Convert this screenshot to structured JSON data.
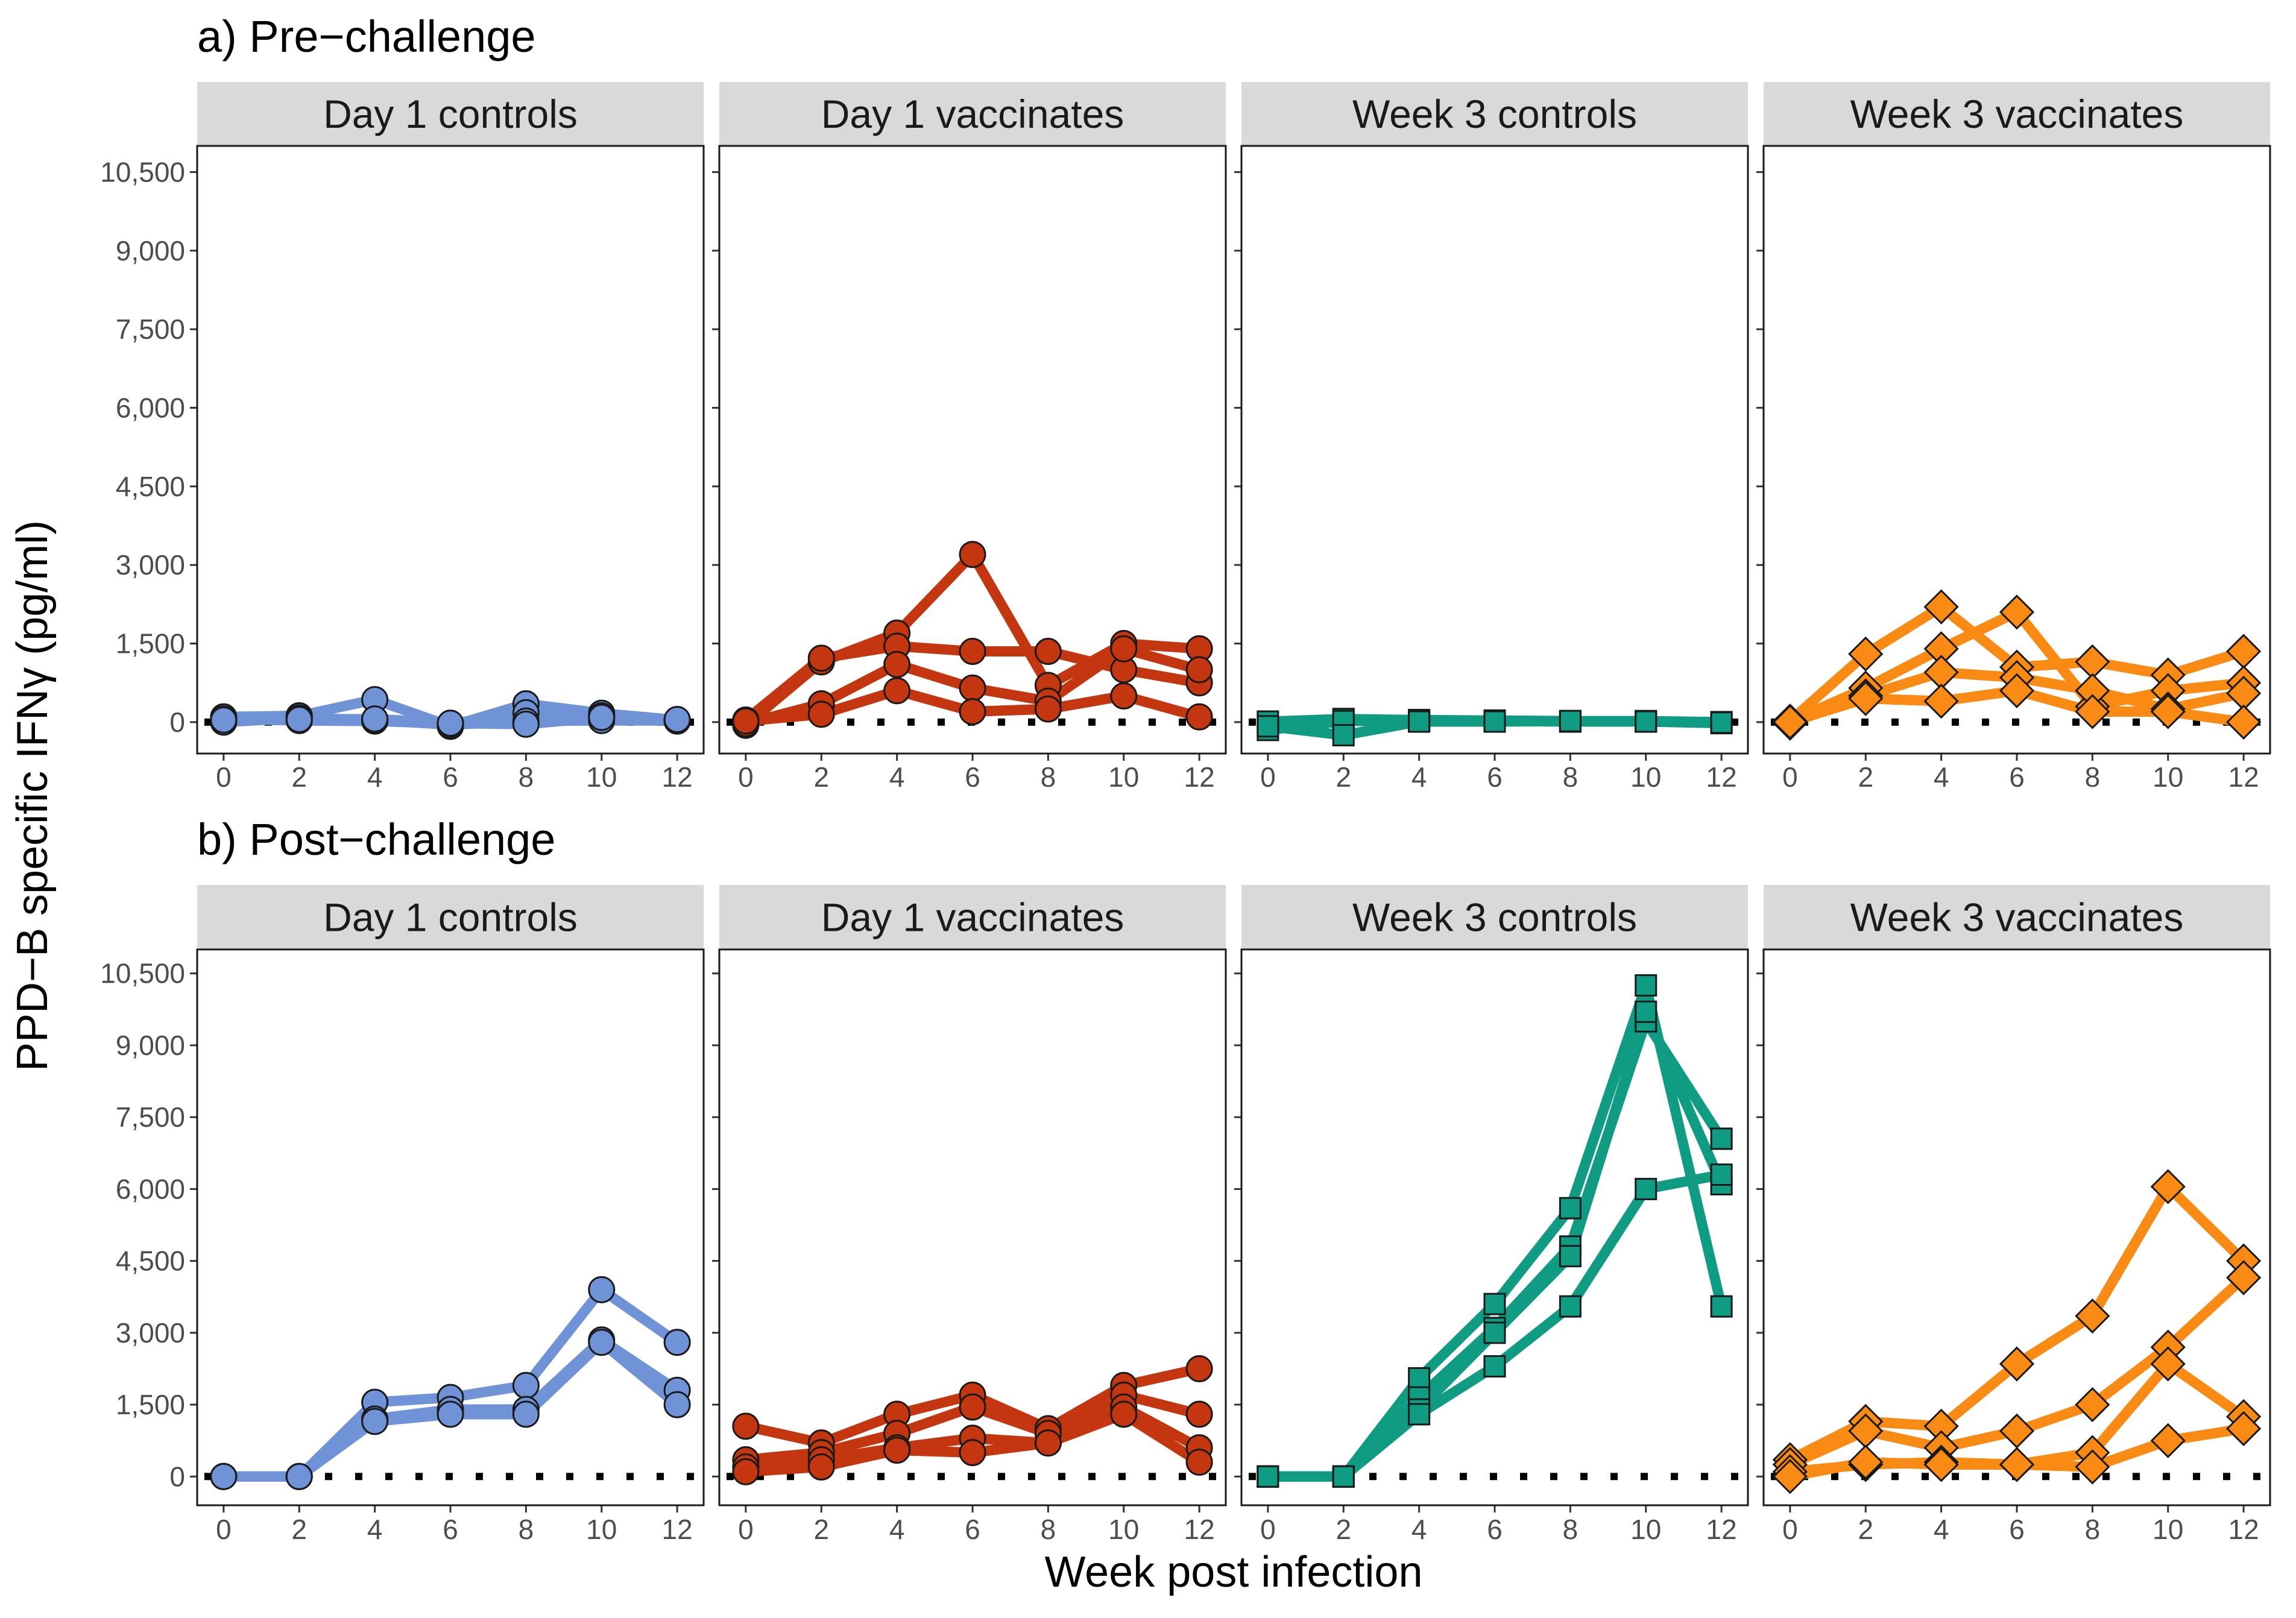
{
  "chart_data": {
    "type": "line",
    "xlabel": "Week post infection",
    "ylabel": "PPD−B specific IFNγ (pg/ml)",
    "x_ticks": [
      "0",
      "2",
      "4",
      "6",
      "8",
      "10",
      "12"
    ],
    "y_ticks": [
      "0",
      "1,500",
      "3,000",
      "4,500",
      "6,000",
      "7,500",
      "9,000",
      "10,500"
    ],
    "xlim": [
      -0.7,
      12.7
    ],
    "ylim": [
      -600,
      11000
    ],
    "reference_line": {
      "y": 0,
      "style": "dotted"
    },
    "groups": [
      {
        "name": "Day 1 controls",
        "color": "#7092D6",
        "marker": "circle"
      },
      {
        "name": "Day 1 vaccinates",
        "color": "#C3360F",
        "marker": "circle"
      },
      {
        "name": "Week 3 controls",
        "color": "#0F9C83",
        "marker": "square"
      },
      {
        "name": "Week 3 vaccinates",
        "color": "#F98A13",
        "marker": "diamond"
      }
    ],
    "rows": [
      {
        "title": "a) Pre−challenge",
        "panels": [
          {
            "facet": "Day 1 controls",
            "x": [
              0,
              2,
              4,
              6,
              8,
              10,
              12
            ],
            "series": [
              {
                "values": [
                  100,
                  120,
                  430,
                  -80,
                  350,
                  170,
                  40
                ]
              },
              {
                "values": [
                  60,
                  30,
                  20,
                  -30,
                  180,
                  120,
                  20
                ]
              },
              {
                "values": [
                  0,
                  80,
                  40,
                  -50,
                  20,
                  30,
                  30
                ]
              },
              {
                "values": [
                  40,
                  50,
                  60,
                  -20,
                  -40,
                  90,
                  50
                ]
              }
            ]
          },
          {
            "facet": "Day 1 vaccinates",
            "x": [
              0,
              2,
              4,
              6,
              8,
              10,
              12
            ],
            "series": [
              {
                "values": [
                  -60,
                  1150,
                  1700,
                  3200,
                  700,
                  1500,
                  1400
                ]
              },
              {
                "values": [
                  40,
                  1220,
                  1450,
                  1350,
                  1350,
                  1000,
                  750
                ]
              },
              {
                "values": [
                  -30,
                  350,
                  1100,
                  650,
                  400,
                  1400,
                  1000
                ]
              },
              {
                "values": [
                  20,
                  150,
                  600,
                  200,
                  250,
                  500,
                  100
                ]
              }
            ]
          },
          {
            "facet": "Week 3 controls",
            "x": [
              0,
              2,
              4,
              6,
              8,
              10,
              12
            ],
            "series": [
              {
                "values": [
                  10,
                  60,
                  40,
                  30,
                  20,
                  20,
                  0
                ]
              },
              {
                "values": [
                  -150,
                  20,
                  30,
                  20,
                  10,
                  10,
                  -20
                ]
              },
              {
                "values": [
                  -80,
                  -250,
                  10,
                  10,
                  20,
                  10,
                  -10
                ]
              }
            ]
          },
          {
            "facet": "Week 3 vaccinates",
            "x": [
              0,
              2,
              4,
              6,
              8,
              10,
              12
            ],
            "series": [
              {
                "values": [
                  20,
                  1300,
                  2200,
                  1050,
                  1150,
                  900,
                  1350
                ]
              },
              {
                "values": [
                  10,
                  650,
                  1400,
                  2100,
                  300,
                  600,
                  750
                ]
              },
              {
                "values": [
                  -20,
                  500,
                  950,
                  850,
                  600,
                  250,
                  550
                ]
              },
              {
                "values": [
                  0,
                  450,
                  400,
                  600,
                  200,
                  200,
                  0
                ]
              }
            ]
          }
        ]
      },
      {
        "title": "b) Post−challenge",
        "panels": [
          {
            "facet": "Day 1 controls",
            "x": [
              0,
              2,
              4,
              6,
              8,
              10,
              12
            ],
            "series": [
              {
                "values": [
                  0,
                  0,
                  1550,
                  1650,
                  1900,
                  3900,
                  2800
                ]
              },
              {
                "values": [
                  0,
                  0,
                  1200,
                  1400,
                  1400,
                  2850,
                  1800
                ]
              },
              {
                "values": [
                  0,
                  0,
                  1150,
                  1300,
                  1300,
                  2800,
                  1500
                ]
              }
            ]
          },
          {
            "facet": "Day 1 vaccinates",
            "x": [
              0,
              2,
              4,
              6,
              8,
              10,
              12
            ],
            "series": [
              {
                "values": [
                  1050,
                  700,
                  1300,
                  1700,
                  1000,
                  1900,
                  2250
                ]
              },
              {
                "values": [
                  350,
                  500,
                  900,
                  1450,
                  900,
                  1700,
                  1300
                ]
              },
              {
                "values": [
                  200,
                  350,
                  600,
                  800,
                  700,
                  1450,
                  600
                ]
              },
              {
                "values": [
                  100,
                  200,
                  550,
                  500,
                  700,
                  1300,
                  300
                ]
              }
            ]
          },
          {
            "facet": "Week 3 controls",
            "x": [
              0,
              2,
              4,
              6,
              8,
              10,
              12
            ],
            "series": [
              {
                "values": [
                  0,
                  0,
                  2050,
                  3600,
                  5600,
                  10250,
                  3550
                ]
              },
              {
                "values": [
                  0,
                  0,
                  1650,
                  3100,
                  4800,
                  9500,
                  7050
                ]
              },
              {
                "values": [
                  0,
                  0,
                  1400,
                  3000,
                  4600,
                  9700,
                  6100
                ]
              },
              {
                "values": [
                  0,
                  0,
                  1300,
                  2300,
                  3550,
                  6000,
                  6300
                ]
              }
            ]
          },
          {
            "facet": "Week 3 vaccinates",
            "x": [
              0,
              2,
              4,
              6,
              8,
              10,
              12
            ],
            "series": [
              {
                "values": [
                  350,
                  1150,
                  1050,
                  2350,
                  3350,
                  6050,
                  4500
                ]
              },
              {
                "values": [
                  250,
                  950,
                  600,
                  950,
                  1500,
                  2700,
                  4150
                ]
              },
              {
                "values": [
                  100,
                  250,
                  300,
                  250,
                  500,
                  2350,
                  1250
                ]
              },
              {
                "values": [
                  0,
                  300,
                  250,
                  250,
                  200,
                  750,
                  1000
                ]
              }
            ]
          }
        ]
      }
    ]
  }
}
